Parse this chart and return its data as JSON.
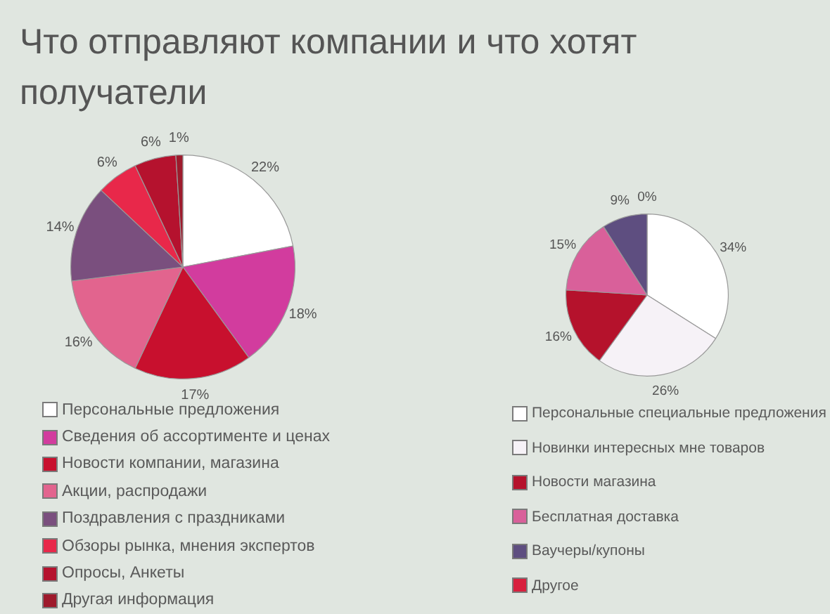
{
  "chart_data": [
    {
      "type": "pie",
      "title": "Что отправляют компании и что хотят получатели",
      "categories": [
        "Персональные предложения",
        "Сведения об ассортименте и ценах",
        "Новости компании, магазина",
        "Акции, распродажи",
        "Поздравления с праздниками",
        "Обзоры рынка, мнения экспертов",
        "Опросы, Анкеты",
        "Другая информация"
      ],
      "values": [
        22,
        18,
        17,
        16,
        14,
        6,
        6,
        1
      ],
      "colors": [
        "#ffffff",
        "#d23c9e",
        "#c8102e",
        "#e2648e",
        "#7a4f7e",
        "#e8284a",
        "#b5122e",
        "#9e1a2c"
      ],
      "value_labels": [
        "22%",
        "18%",
        "17%",
        "16%",
        "14%",
        "6%",
        "6%",
        "1%"
      ],
      "legend": "bottom"
    },
    {
      "type": "pie",
      "categories": [
        "Персональные специальные предложения",
        "Новинки интересных мне товаров",
        "Новости магазина",
        "Бесплатная доставка",
        "Ваучеры/купоны",
        "Другое"
      ],
      "values": [
        34,
        26,
        16,
        15,
        9,
        0
      ],
      "colors": [
        "#ffffff",
        "#f6f2f7",
        "#b5122c",
        "#d9609a",
        "#5e4e80",
        "#d8203e"
      ],
      "value_labels": [
        "34%",
        "26%",
        "16%",
        "15%",
        "9%",
        "0%"
      ],
      "legend": "bottom"
    }
  ]
}
